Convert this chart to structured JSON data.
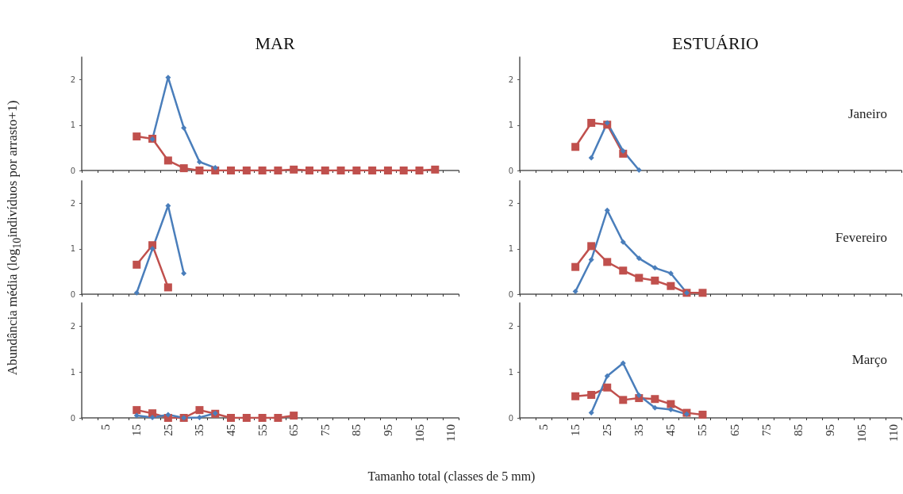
{
  "chart_data": [
    {
      "type": "line",
      "title": "MAR",
      "ylabel": "Abundância média (log$_{10}$indivíduos por arrasto+1)",
      "categories": [
        null,
        "5",
        null,
        "15",
        null,
        "25",
        null,
        "35",
        null,
        "45",
        null,
        "55",
        null,
        "65",
        null,
        "75",
        null,
        "85",
        null,
        "95",
        null,
        "105",
        null,
        "110"
      ],
      "ylim": [
        0,
        2.5
      ],
      "yticks": [
        0,
        1,
        2
      ],
      "tick_labels": "y",
      "series": [
        {
          "color": "#c0504d",
          "marker": "square",
          "values": [
            null,
            null,
            null,
            0.75,
            0.7,
            0.22,
            0.05,
            0,
            0,
            0,
            0,
            0,
            0,
            0.02,
            0,
            0,
            0,
            0,
            0,
            0,
            0,
            0,
            0.02,
            null
          ]
        },
        {
          "color": "#4a7ebb",
          "marker": "diamond",
          "values": [
            null,
            null,
            null,
            null,
            0.69,
            2.05,
            0.94,
            0.19,
            0.06,
            null,
            null,
            null,
            null,
            null,
            null,
            null,
            null,
            null,
            null,
            null,
            null,
            null,
            null,
            null
          ]
        }
      ]
    },
    {
      "type": "line",
      "title": "ESTUÁRIO",
      "annotations": [
        "Janeiro"
      ],
      "categories": [
        null,
        "5",
        null,
        "15",
        null,
        "25",
        null,
        "35",
        null,
        "45",
        null,
        "55",
        null,
        "65",
        null,
        "75",
        null,
        "85",
        null,
        "95",
        null,
        "105",
        null,
        "110"
      ],
      "ylim": [
        0,
        2.5
      ],
      "yticks": [
        0,
        1,
        2
      ],
      "tick_labels": "y",
      "series": [
        {
          "color": "#c0504d",
          "marker": "square",
          "values": [
            null,
            null,
            null,
            0.52,
            1.05,
            1.01,
            0.37,
            null,
            null,
            null,
            null,
            null,
            null,
            null,
            null,
            null,
            null,
            null,
            null,
            null,
            null,
            null,
            null,
            null
          ]
        },
        {
          "color": "#4a7ebb",
          "marker": "diamond",
          "values": [
            null,
            null,
            null,
            null,
            0.28,
            1.05,
            0.43,
            0.01,
            null,
            null,
            null,
            null,
            null,
            null,
            null,
            null,
            null,
            null,
            null,
            null,
            null,
            null,
            null,
            null
          ]
        }
      ]
    },
    {
      "type": "line",
      "categories": [
        null,
        "5",
        null,
        "15",
        null,
        "25",
        null,
        "35",
        null,
        "45",
        null,
        "55",
        null,
        "65",
        null,
        "75",
        null,
        "85",
        null,
        "95",
        null,
        "105",
        null,
        "110"
      ],
      "ylim": [
        0,
        2.5
      ],
      "yticks": [
        0,
        1,
        2
      ],
      "tick_labels": "y",
      "series": [
        {
          "color": "#c0504d",
          "marker": "square",
          "values": [
            null,
            null,
            null,
            0.65,
            1.08,
            0.15,
            null,
            null,
            null,
            null,
            null,
            null,
            null,
            null,
            null,
            null,
            null,
            null,
            null,
            null,
            null,
            null,
            null,
            null
          ]
        },
        {
          "color": "#4a7ebb",
          "marker": "diamond",
          "values": [
            null,
            null,
            null,
            0.03,
            1.0,
            1.95,
            0.46,
            null,
            null,
            null,
            null,
            null,
            null,
            null,
            null,
            null,
            null,
            null,
            null,
            null,
            null,
            null,
            null,
            null
          ]
        }
      ]
    },
    {
      "type": "line",
      "annotations": [
        "Fevereiro"
      ],
      "categories": [
        null,
        "5",
        null,
        "15",
        null,
        "25",
        null,
        "35",
        null,
        "45",
        null,
        "55",
        null,
        "65",
        null,
        "75",
        null,
        "85",
        null,
        "95",
        null,
        "105",
        null,
        "110"
      ],
      "ylim": [
        0,
        2.5
      ],
      "yticks": [
        0,
        1,
        2
      ],
      "tick_labels": "y",
      "series": [
        {
          "color": "#c0504d",
          "marker": "square",
          "values": [
            null,
            null,
            null,
            0.6,
            1.06,
            0.71,
            0.52,
            0.36,
            0.3,
            0.18,
            0.03,
            0.03,
            null,
            null,
            null,
            null,
            null,
            null,
            null,
            null,
            null,
            null,
            null,
            null
          ]
        },
        {
          "color": "#4a7ebb",
          "marker": "diamond",
          "values": [
            null,
            null,
            null,
            0.06,
            0.76,
            1.85,
            1.15,
            0.79,
            0.58,
            0.46,
            0.03,
            null,
            null,
            null,
            null,
            null,
            null,
            null,
            null,
            null,
            null,
            null,
            null,
            null
          ]
        }
      ]
    },
    {
      "type": "line",
      "xlabel": "Tamanho total (classes de 5 mm)",
      "categories": [
        null,
        "5",
        null,
        "15",
        null,
        "25",
        null,
        "35",
        null,
        "45",
        null,
        "55",
        null,
        "65",
        null,
        "75",
        null,
        "85",
        null,
        "95",
        null,
        "105",
        null,
        "110"
      ],
      "ylim": [
        0,
        2.5
      ],
      "yticks": [
        0,
        1,
        2
      ],
      "series": [
        {
          "color": "#c0504d",
          "marker": "square",
          "values": [
            null,
            null,
            null,
            0.17,
            0.1,
            0,
            0,
            0.17,
            0.09,
            0,
            0,
            0,
            0,
            0.05,
            null,
            null,
            null,
            null,
            null,
            null,
            null,
            null,
            null,
            null
          ]
        },
        {
          "color": "#4a7ebb",
          "marker": "diamond",
          "values": [
            null,
            null,
            null,
            0.05,
            0.01,
            0.07,
            0,
            0.01,
            0.1,
            null,
            null,
            null,
            null,
            null,
            null,
            null,
            null,
            null,
            null,
            null,
            null,
            null,
            null,
            null
          ]
        }
      ]
    },
    {
      "type": "line",
      "annotations": [
        "Março"
      ],
      "categories": [
        null,
        "5",
        null,
        "15",
        null,
        "25",
        null,
        "35",
        null,
        "45",
        null,
        "55",
        null,
        "65",
        null,
        "75",
        null,
        "85",
        null,
        "95",
        null,
        "105",
        null,
        "110"
      ],
      "ylim": [
        0,
        2.5
      ],
      "yticks": [
        0,
        1,
        2
      ],
      "series": [
        {
          "color": "#c0504d",
          "marker": "square",
          "values": [
            null,
            null,
            null,
            0.47,
            0.5,
            0.66,
            0.39,
            0.43,
            0.41,
            0.3,
            0.11,
            0.07,
            null,
            null,
            null,
            null,
            null,
            null,
            null,
            null,
            null,
            null,
            null,
            null
          ]
        },
        {
          "color": "#4a7ebb",
          "marker": "diamond",
          "values": [
            null,
            null,
            null,
            null,
            0.11,
            0.91,
            1.19,
            0.49,
            0.22,
            0.18,
            0.08,
            null,
            null,
            null,
            null,
            null,
            null,
            null,
            null,
            null,
            null,
            null,
            null,
            null
          ]
        }
      ]
    }
  ]
}
